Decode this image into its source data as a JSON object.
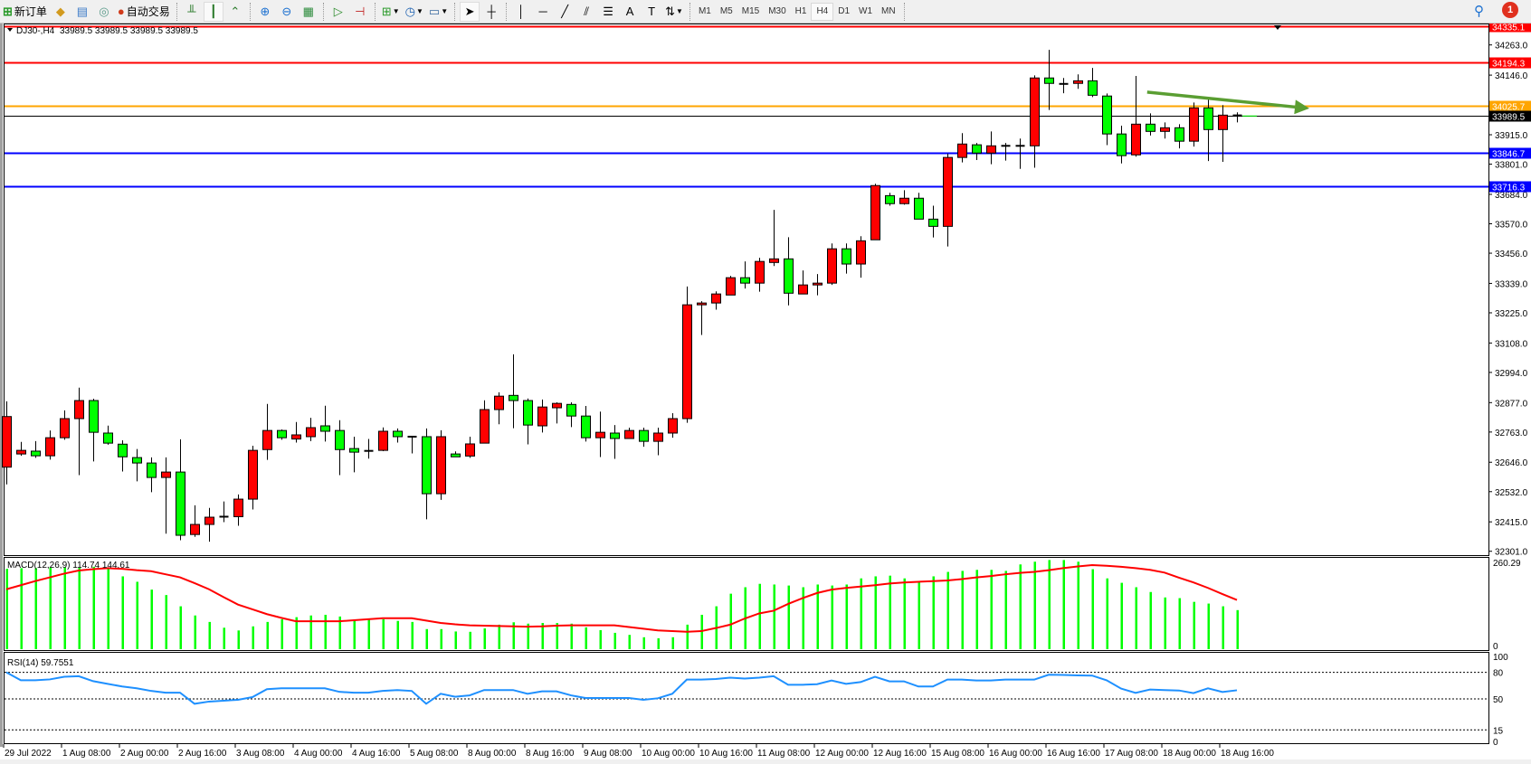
{
  "toolbar": {
    "new_order": "新订单",
    "auto_trading": "自动交易",
    "timeframes": [
      "M1",
      "M5",
      "M15",
      "M30",
      "H1",
      "H4",
      "D1",
      "W1",
      "MN"
    ],
    "active_timeframe": "H4",
    "notification_count": "1",
    "icons": [
      "new-order-icon",
      "history-icon",
      "data-window-icon",
      "signals-icon",
      "auto-trading-icon",
      "bar-chart-icon",
      "candlestick-icon",
      "line-chart-icon",
      "zoom-in-icon",
      "zoom-out-icon",
      "tile-windows-icon",
      "auto-scroll-icon",
      "chart-shift-icon",
      "indicators-icon",
      "periods-icon",
      "templates-icon",
      "cursor-icon",
      "crosshair-icon",
      "vertical-line-icon",
      "horizontal-line-icon",
      "trendline-icon",
      "channel-icon",
      "fibonacci-icon",
      "text-icon",
      "text-label-icon",
      "arrows-icon",
      "search-icon",
      "notification-icon"
    ]
  },
  "chart": {
    "symbol": "DJ30-,H4",
    "ohlc": "33989.5 33989.5 33989.5 33989.5",
    "macd_label": "MACD(12,26,9) 114.74 144.61",
    "rsi_label": "RSI(14) 59.7551"
  },
  "chart_data": {
    "type": "candlestick",
    "bull_color": "#ff0000",
    "bear_color": "#00ff00",
    "ylim": [
      32293,
      34339
    ],
    "price_ticks": [
      "34263.0",
      "34146.0",
      "33915.0",
      "33801.0",
      "33684.0",
      "33570.0",
      "33456.0",
      "33339.0",
      "33225.0",
      "33108.0",
      "32994.0",
      "32877.0",
      "32763.0",
      "32646.0",
      "32532.0",
      "32415.0",
      "32301.0"
    ],
    "time_labels": [
      "29 Jul 2022",
      "1 Aug 08:00",
      "2 Aug 00:00",
      "2 Aug 16:00",
      "3 Aug 08:00",
      "4 Aug 00:00",
      "4 Aug 16:00",
      "5 Aug 08:00",
      "8 Aug 00:00",
      "8 Aug 16:00",
      "9 Aug 08:00",
      "10 Aug 00:00",
      "10 Aug 16:00",
      "11 Aug 08:00",
      "12 Aug 00:00",
      "12 Aug 16:00",
      "15 Aug 08:00",
      "16 Aug 00:00",
      "16 Aug 16:00",
      "17 Aug 08:00",
      "18 Aug 00:00",
      "18 Aug 16:00"
    ],
    "hlines": [
      {
        "price": 34335.1,
        "label": "34335.1",
        "color": "#ff0000"
      },
      {
        "price": 34194.3,
        "label": "34194.3",
        "color": "#ff0000"
      },
      {
        "price": 34025.7,
        "label": "34025.7",
        "color": "#ffa500"
      },
      {
        "price": 33989.5,
        "label": "33989.5",
        "color": "#000000"
      },
      {
        "price": 33846.7,
        "label": "33846.7",
        "color": "#0000ff"
      },
      {
        "price": 33716.3,
        "label": "33716.3",
        "color": "#0000ff"
      }
    ],
    "trend_arrow": {
      "from_bar": 78.8,
      "from_price": 34080,
      "to_bar": 90,
      "to_price": 34017,
      "color": "#5a9e32"
    },
    "ohlc": [
      [
        32627,
        32882,
        32560,
        32823
      ],
      [
        32678,
        32725,
        32671,
        32692
      ],
      [
        32689,
        32728,
        32663,
        32671
      ],
      [
        32671,
        32769,
        32656,
        32741
      ],
      [
        32741,
        32847,
        32733,
        32815
      ],
      [
        32815,
        32935,
        32596,
        32885
      ],
      [
        32885,
        32892,
        32649,
        32762
      ],
      [
        32759,
        32788,
        32714,
        32720
      ],
      [
        32716,
        32731,
        32610,
        32667
      ],
      [
        32664,
        32697,
        32572,
        32643
      ],
      [
        32643,
        32665,
        32530,
        32587
      ],
      [
        32587,
        32665,
        32369,
        32608
      ],
      [
        32608,
        32735,
        32344,
        32363
      ],
      [
        32366,
        32479,
        32357,
        32405
      ],
      [
        32405,
        32469,
        32338,
        32433
      ],
      [
        32435,
        32494,
        32414,
        32435
      ],
      [
        32435,
        32521,
        32400,
        32503
      ],
      [
        32503,
        32710,
        32463,
        32692
      ],
      [
        32695,
        32872,
        32655,
        32769
      ],
      [
        32769,
        32773,
        32733,
        32741
      ],
      [
        32736,
        32802,
        32722,
        32752
      ],
      [
        32745,
        32818,
        32728,
        32780
      ],
      [
        32787,
        32865,
        32726,
        32766
      ],
      [
        32769,
        32809,
        32596,
        32695
      ],
      [
        32699,
        32745,
        32607,
        32685
      ],
      [
        32690,
        32736,
        32660,
        32690
      ],
      [
        32692,
        32781,
        32689,
        32766
      ],
      [
        32766,
        32777,
        32722,
        32745
      ],
      [
        32745,
        32745,
        32680,
        32745
      ],
      [
        32745,
        32777,
        32425,
        32524
      ],
      [
        32524,
        32770,
        32500,
        32745
      ],
      [
        32678,
        32688,
        32667,
        32667
      ],
      [
        32670,
        32745,
        32663,
        32717
      ],
      [
        32720,
        32886,
        32720,
        32850
      ],
      [
        32850,
        32917,
        32793,
        32902
      ],
      [
        32905,
        33064,
        32778,
        32885
      ],
      [
        32885,
        32893,
        32715,
        32790
      ],
      [
        32787,
        32889,
        32761,
        32860
      ],
      [
        32857,
        32878,
        32796,
        32874
      ],
      [
        32870,
        32878,
        32782,
        32825
      ],
      [
        32825,
        32864,
        32726,
        32741
      ],
      [
        32741,
        32842,
        32666,
        32762
      ],
      [
        32759,
        32790,
        32659,
        32738
      ],
      [
        32738,
        32780,
        32738,
        32769
      ],
      [
        32769,
        32780,
        32706,
        32727
      ],
      [
        32727,
        32780,
        32673,
        32759
      ],
      [
        32759,
        32836,
        32741,
        32815
      ],
      [
        32815,
        33327,
        32799,
        33256
      ],
      [
        33256,
        33270,
        33139,
        33263
      ],
      [
        33263,
        33308,
        33237,
        33298
      ],
      [
        33294,
        33368,
        33294,
        33361
      ],
      [
        33361,
        33424,
        33319,
        33340
      ],
      [
        33340,
        33438,
        33307,
        33424
      ],
      [
        33420,
        33624,
        33406,
        33434
      ],
      [
        33434,
        33518,
        33254,
        33301
      ],
      [
        33298,
        33389,
        33298,
        33333
      ],
      [
        33333,
        33375,
        33293,
        33340
      ],
      [
        33340,
        33494,
        33333,
        33473
      ],
      [
        33473,
        33494,
        33377,
        33414
      ],
      [
        33414,
        33522,
        33361,
        33504
      ],
      [
        33508,
        33725,
        33508,
        33718
      ],
      [
        33679,
        33690,
        33640,
        33648
      ],
      [
        33648,
        33700,
        33644,
        33669
      ],
      [
        33669,
        33690,
        33588,
        33588
      ],
      [
        33588,
        33640,
        33517,
        33560
      ],
      [
        33560,
        33842,
        33482,
        33827
      ],
      [
        33827,
        33921,
        33808,
        33879
      ],
      [
        33876,
        33883,
        33817,
        33844
      ],
      [
        33844,
        33928,
        33801,
        33872
      ],
      [
        33872,
        33883,
        33815,
        33872
      ],
      [
        33872,
        33900,
        33783,
        33872
      ],
      [
        33872,
        34145,
        33787,
        34135
      ],
      [
        34135,
        34244,
        34011,
        34114
      ],
      [
        34112,
        34135,
        34076,
        34112
      ],
      [
        34114,
        34149,
        34093,
        34124
      ],
      [
        34124,
        34174,
        34061,
        34068
      ],
      [
        34065,
        34075,
        33875,
        33918
      ],
      [
        33918,
        33950,
        33804,
        33834
      ],
      [
        33837,
        34143,
        33830,
        33956
      ],
      [
        33956,
        33998,
        33912,
        33928
      ],
      [
        33928,
        33963,
        33900,
        33942
      ],
      [
        33942,
        33956,
        33862,
        33890
      ],
      [
        33890,
        34040,
        33869,
        34019
      ],
      [
        34019,
        34051,
        33813,
        33935
      ],
      [
        33935,
        34030,
        33810,
        33991
      ],
      [
        33990,
        34002,
        33963,
        33989.5
      ]
    ],
    "macd": {
      "max_label": "260.29",
      "zero_label": "0",
      "ylim": [
        0,
        263
      ],
      "histogram_color": "#00ff00",
      "signal_color": "#ff0000",
      "histogram": [
        236,
        238,
        238,
        240,
        240,
        240,
        242,
        236,
        214,
        198,
        175,
        159,
        126,
        99,
        80,
        63,
        55,
        67,
        80,
        88,
        94,
        99,
        101,
        96,
        86,
        86,
        88,
        83,
        80,
        59,
        59,
        52,
        51,
        61,
        72,
        79,
        75,
        77,
        77,
        75,
        64,
        56,
        48,
        42,
        35,
        32,
        35,
        72,
        101,
        126,
        163,
        182,
        192,
        190,
        187,
        182,
        190,
        187,
        190,
        208,
        214,
        216,
        208,
        198,
        214,
        227,
        230,
        233,
        233,
        230,
        249,
        257,
        262,
        262,
        257,
        235,
        208,
        195,
        182,
        168,
        152,
        150,
        139,
        134,
        126,
        114.74
      ],
      "signal": [
        176,
        188,
        200,
        211,
        222,
        231,
        235,
        238,
        236,
        232,
        229,
        220,
        211,
        194,
        176,
        153,
        131,
        117,
        103,
        92,
        82,
        82,
        82,
        82,
        85,
        88,
        91,
        91,
        91,
        84,
        77,
        73,
        70,
        69,
        68,
        67,
        66,
        67,
        69,
        70,
        70,
        70,
        70,
        65,
        60,
        55,
        53,
        51,
        53,
        62,
        72,
        90,
        105,
        113,
        133,
        150,
        165,
        175,
        180,
        184,
        188,
        193,
        196,
        198,
        200,
        202,
        206,
        211,
        215,
        220,
        224,
        227,
        232,
        238,
        243,
        247,
        245,
        242,
        238,
        233,
        225,
        210,
        196,
        180,
        162,
        144.61
      ]
    },
    "rsi": {
      "levels": [
        80,
        50,
        15
      ],
      "level_labels": [
        "100",
        "80",
        "50",
        "15",
        "0"
      ],
      "ylim": [
        0,
        100
      ],
      "color": "#1e90ff",
      "values": [
        80,
        71,
        71,
        72,
        75,
        75.6,
        70,
        67,
        64,
        62,
        59,
        57,
        57,
        44.5,
        47,
        48,
        49,
        52,
        61,
        62,
        62,
        62,
        62,
        58,
        57,
        57,
        59,
        60,
        59,
        44.5,
        55.8,
        52.4,
        54,
        60,
        60,
        60,
        55.8,
        58.5,
        58.5,
        54,
        51,
        51,
        51,
        51,
        49,
        50.7,
        55.8,
        71.8,
        71.8,
        72.5,
        74,
        73,
        74,
        75.6,
        66,
        66,
        66.6,
        70.8,
        67,
        69,
        74.9,
        69.8,
        69.8,
        64,
        64,
        71.8,
        71.8,
        70.8,
        70.8,
        71.8,
        71.8,
        71.8,
        77.3,
        77,
        76.5,
        76.3,
        71,
        61.6,
        56.8,
        60.6,
        60,
        59.5,
        56.5,
        62,
        57.8,
        59.7551
      ]
    }
  }
}
